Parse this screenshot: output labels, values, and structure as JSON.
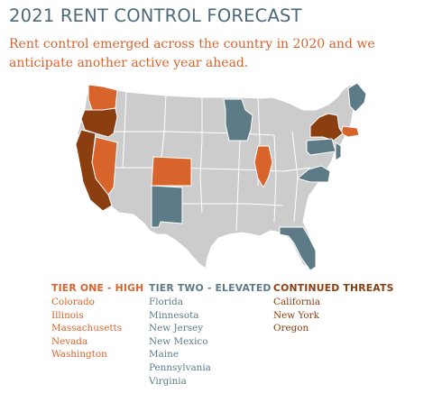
{
  "header": {
    "title": "2021 RENT CONTROL FORECAST",
    "subtitle": "Rent control emerged across the country in 2020 and we anticipate another active year ahead."
  },
  "colors": {
    "tier_one": "#d8632b",
    "tier_two": "#5d7b87",
    "continued_threats": "#8b3e10",
    "other_states": "#cccccc",
    "borders": "#ffffff"
  },
  "legend": {
    "tier_one": {
      "heading": "TIER ONE - HIGH",
      "states": [
        "Colorado",
        "Illinois",
        "Massachusetts",
        "Nevada",
        "Washington"
      ]
    },
    "tier_two": {
      "heading": "TIER TWO - ELEVATED",
      "states": [
        "Florida",
        "Minnesota",
        "New Jersey",
        "New Mexico",
        "Maine",
        "Pennsylvania",
        "Virginia"
      ]
    },
    "continued_threats": {
      "heading": "CONTINUED THREATS",
      "states": [
        "California",
        "New York",
        "Oregon"
      ]
    }
  }
}
